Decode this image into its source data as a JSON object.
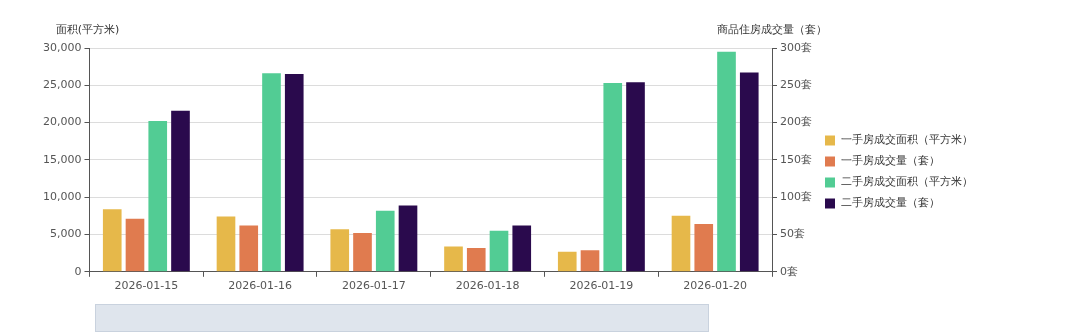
{
  "chart_data": {
    "type": "bar",
    "categories": [
      "2026-01-15",
      "2026-01-16",
      "2026-01-17",
      "2026-01-18",
      "2026-01-19",
      "2026-01-20"
    ],
    "ylabel": "面积(平方米)",
    "y2label": "商品住房成交量（套）",
    "series": [
      {
        "name": "一手房成交面积（平方米）",
        "color": "#e6b84a",
        "values": [
          8400,
          7400,
          5700,
          3400,
          2700,
          7500
        ]
      },
      {
        "name": "一手房成交量（套）",
        "color": "#e07b4f",
        "axis": "y2",
        "values": [
          71,
          62,
          52,
          32,
          29,
          64
        ]
      },
      {
        "name": "二手房成交面积（平方米）",
        "color": "#52cc94",
        "values": [
          20200,
          26600,
          8200,
          5500,
          25300,
          29500
        ]
      },
      {
        "name": "二手房成交量（套）",
        "color": "#2a0a4d",
        "axis": "y2",
        "values": [
          216,
          265,
          89,
          62,
          254,
          267
        ]
      }
    ],
    "ylim": [
      0,
      30000
    ],
    "yticks": [
      0,
      {
        "value": 5000,
        "label": "5,000"
      },
      {
        "value": 10000,
        "label": "10,000"
      },
      {
        "value": 15000,
        "label": "15,000"
      },
      {
        "value": 20000,
        "label": "20,000"
      },
      {
        "value": 25000,
        "label": "25,000"
      },
      {
        "value": 30000,
        "label": "30,000"
      }
    ],
    "y2lim": [
      0,
      300
    ],
    "y2ticks": [
      {
        "value": 0,
        "label": "0套"
      },
      {
        "value": 50,
        "label": "50套"
      },
      {
        "value": 100,
        "label": "100套"
      },
      {
        "value": 150,
        "label": "150套"
      },
      {
        "value": 200,
        "label": "200套"
      },
      {
        "value": 250,
        "label": "250套"
      },
      {
        "value": 300,
        "label": "300套"
      }
    ],
    "grid": "y",
    "legend": "right"
  }
}
